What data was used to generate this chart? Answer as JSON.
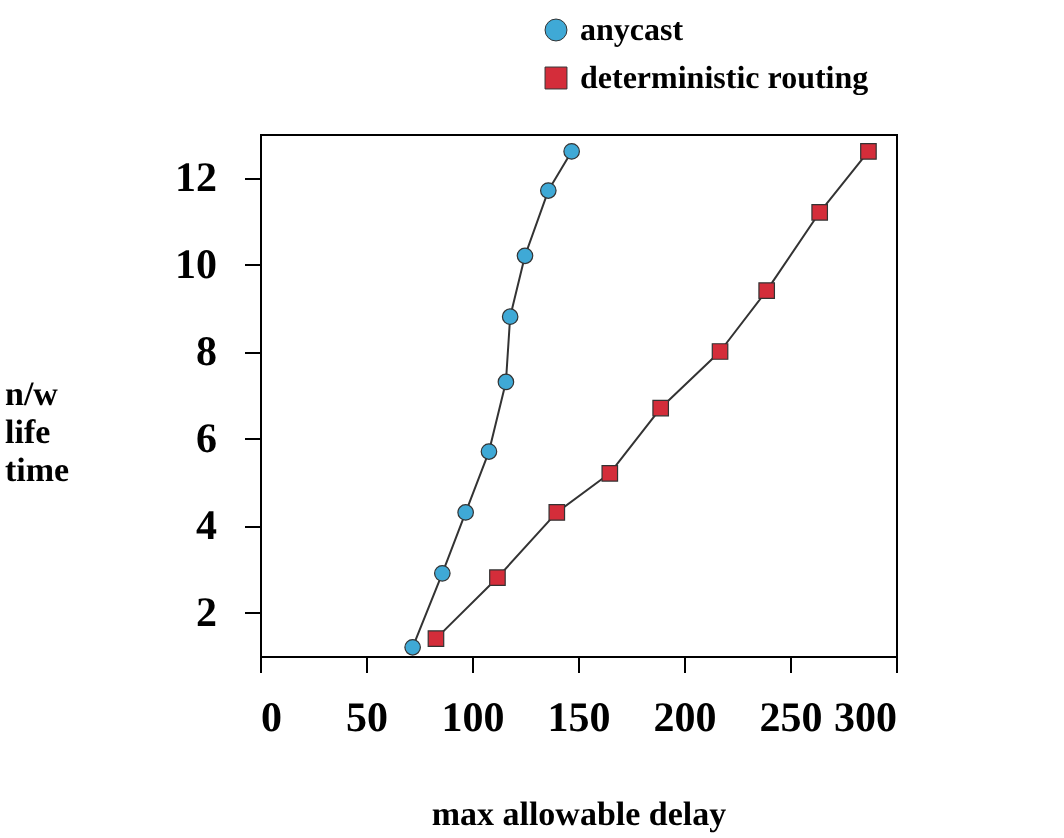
{
  "chart_data": {
    "type": "line",
    "xlabel": "max allowable delay",
    "ylabel": "n/w life time",
    "xlim": [
      0,
      300
    ],
    "xticks": [
      0,
      50,
      100,
      150,
      200,
      250,
      300
    ],
    "ylim": [
      1,
      13
    ],
    "yticks": [
      2,
      4,
      6,
      8,
      10,
      12
    ],
    "grid": false,
    "legend": "top right",
    "line_style": "solid",
    "series": [
      {
        "name": "anycast",
        "color": "#3fa9d6",
        "marker": "circle",
        "x": [
          72,
          86,
          97,
          108,
          116,
          118,
          125,
          136,
          147
        ],
        "values": [
          1.2,
          2.9,
          4.3,
          5.7,
          7.3,
          8.8,
          10.2,
          11.7,
          12.6
        ]
      },
      {
        "name": "deterministic routing",
        "color": "#d42d3a",
        "marker": "square",
        "x": [
          83,
          112,
          140,
          165,
          189,
          217,
          239,
          264,
          287
        ],
        "values": [
          1.4,
          2.8,
          4.3,
          5.2,
          6.7,
          8.0,
          9.4,
          11.2,
          12.6
        ]
      }
    ]
  }
}
